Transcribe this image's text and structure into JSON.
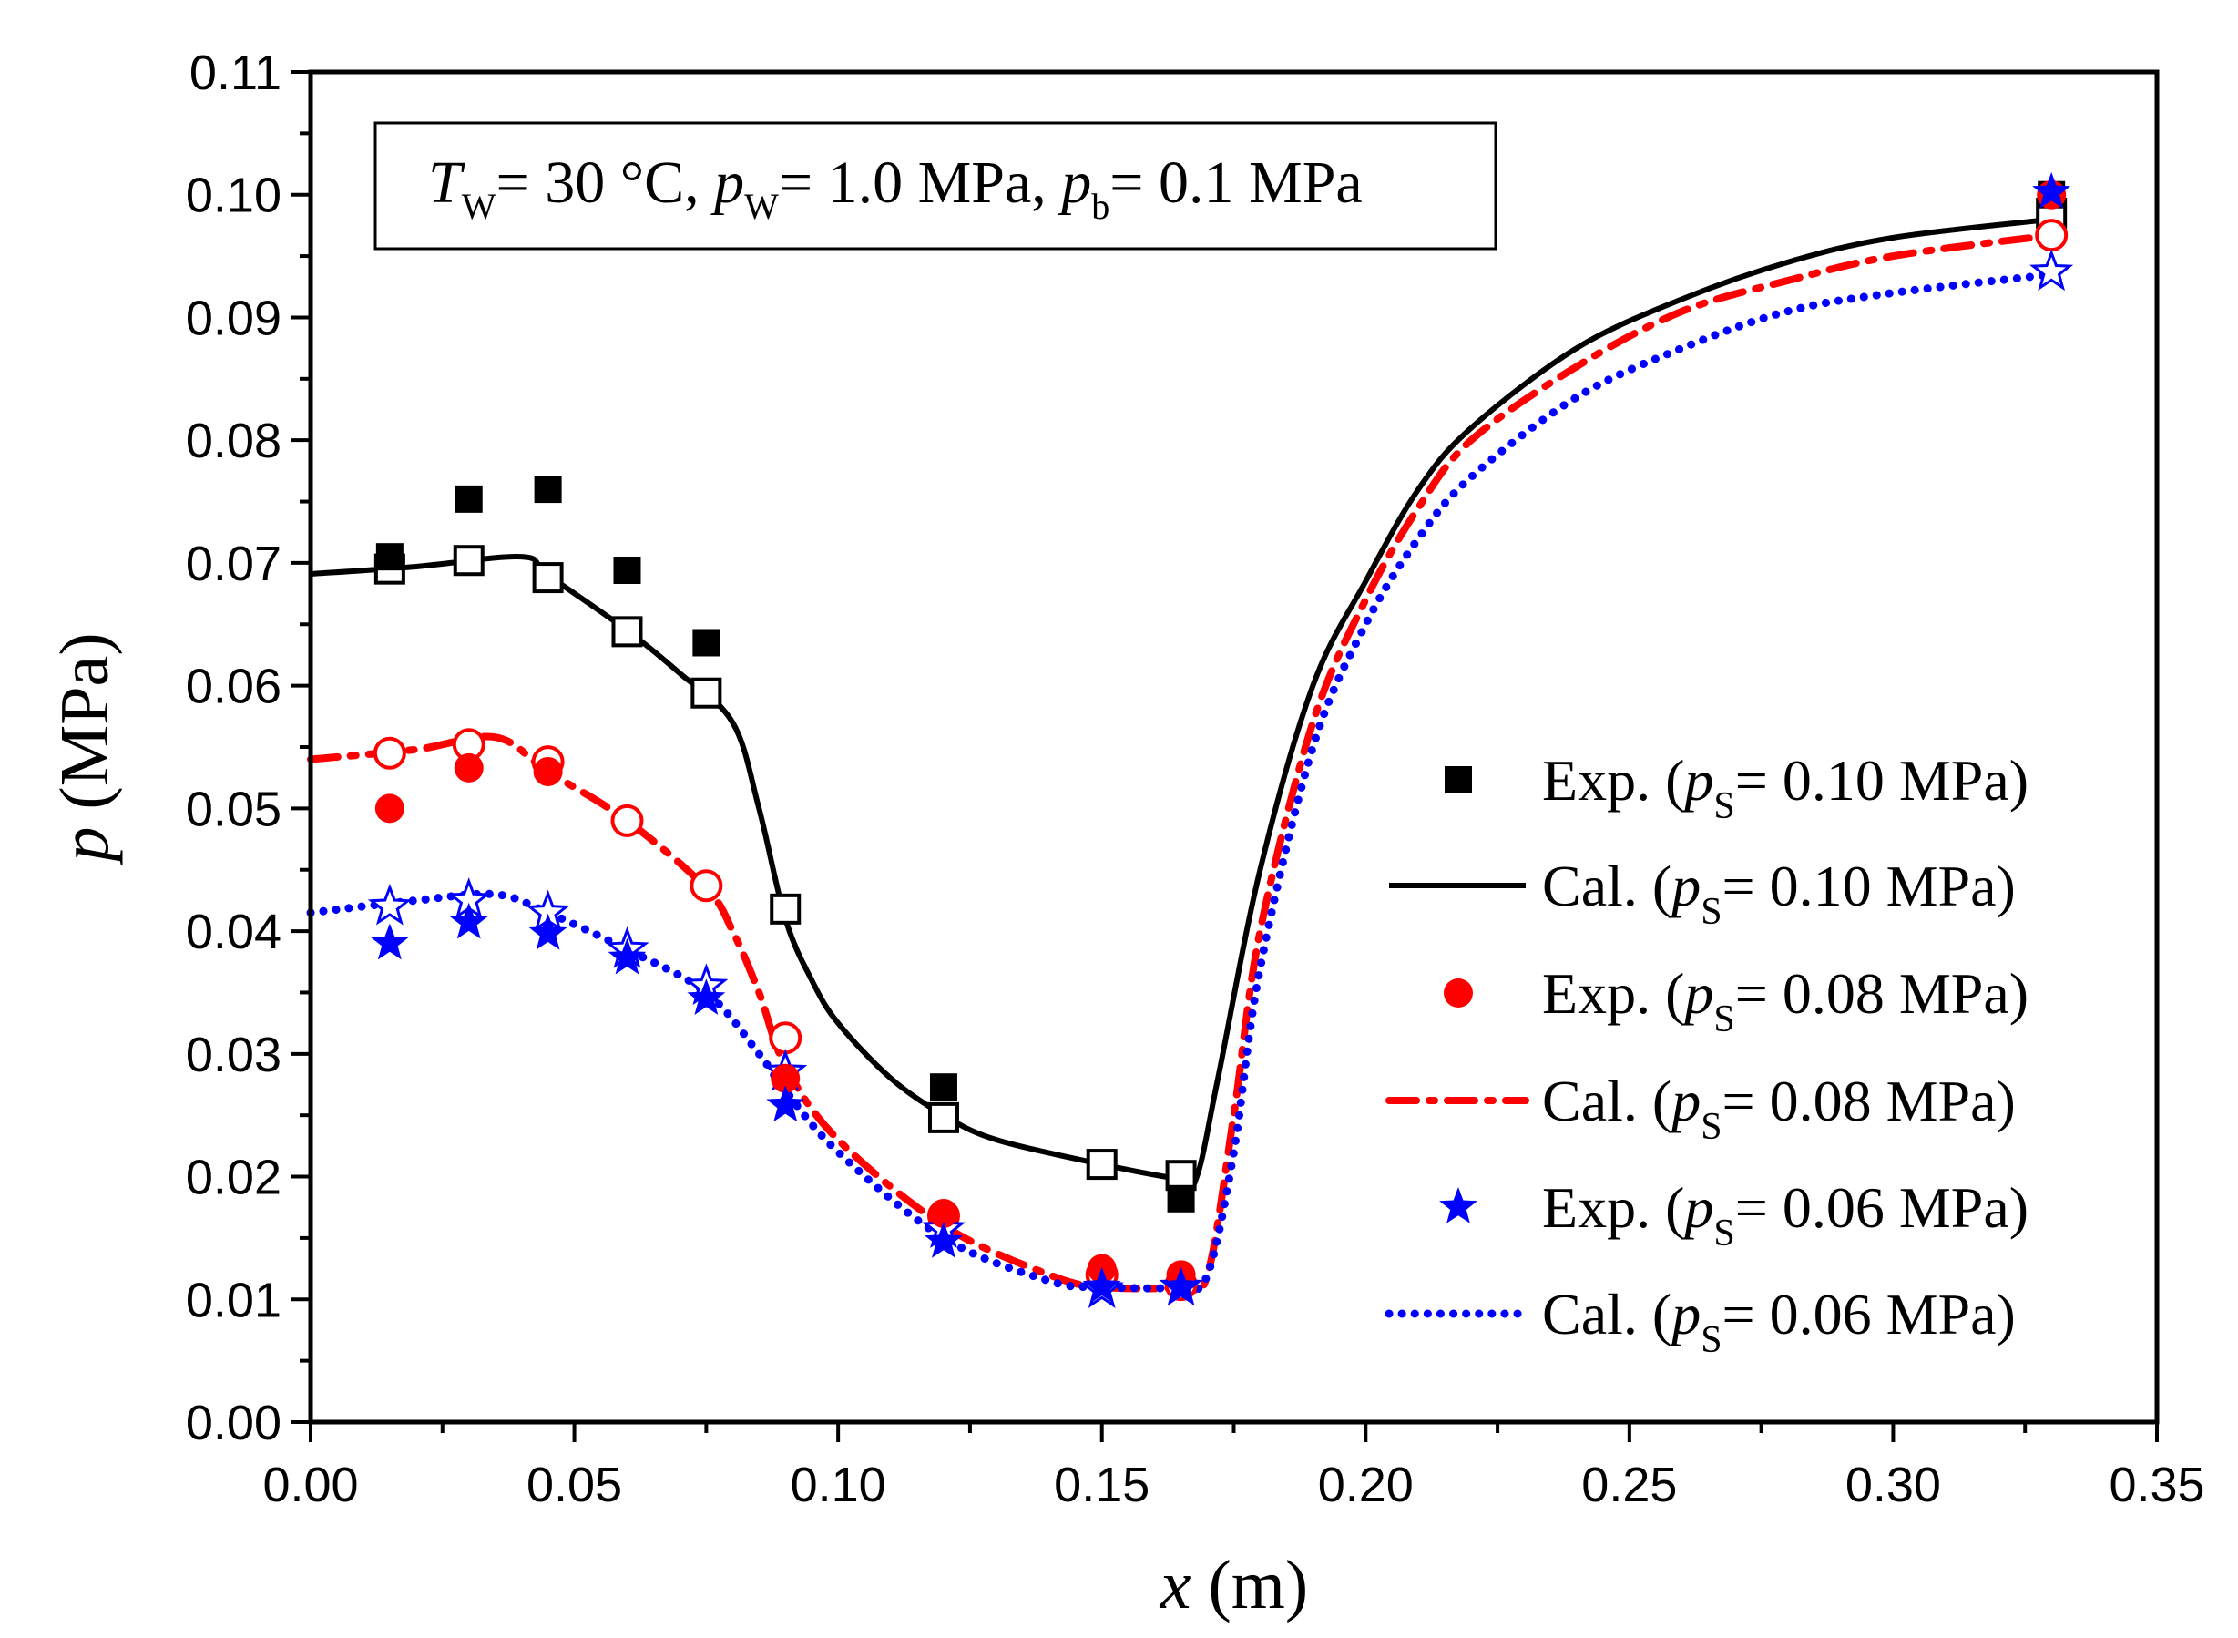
{
  "chart_data": {
    "type": "line",
    "title": "",
    "annotation": {
      "T": "T",
      "T_sub": "W",
      "t1": "= 30 °C, ",
      "p1": "p",
      "p1_sub": "W",
      "t2": "= 1.0 MPa, ",
      "p2": "p",
      "p2_sub": "b",
      "t3": "= 0.1 MPa"
    },
    "xlabel": {
      "var": "x",
      "unit": " (m)"
    },
    "ylabel": {
      "var": "p",
      "unit": " (MPa)"
    },
    "xlim": [
      0,
      0.35
    ],
    "ylim": [
      0,
      0.11
    ],
    "xticks": [
      "0.00",
      "0.05",
      "0.10",
      "0.15",
      "0.20",
      "0.25",
      "0.30",
      "0.35"
    ],
    "yticks": [
      "0.00",
      "0.01",
      "0.02",
      "0.03",
      "0.04",
      "0.05",
      "0.06",
      "0.07",
      "0.08",
      "0.09",
      "0.10",
      "0.11"
    ],
    "legend_position": "right",
    "colors": {
      "s10": "#000000",
      "s08": "#ff0000",
      "s06": "#0000ff"
    },
    "series": [
      {
        "name": "Exp. (pS= 0.10 MPa)",
        "prefix": "Exp. (",
        "var": "p",
        "sub": "S",
        "suffix": "= 0.10 MPa)",
        "kind": "exp",
        "marker": "square",
        "color": "#000000",
        "x": [
          0.015,
          0.03,
          0.045,
          0.06,
          0.075,
          0.12,
          0.165,
          0.33
        ],
        "y": [
          0.0705,
          0.0752,
          0.076,
          0.0694,
          0.0635,
          0.0273,
          0.0182,
          0.1
        ]
      },
      {
        "name": "Cal. (pS= 0.10 MPa)",
        "prefix": "Cal. (",
        "var": "p",
        "sub": "S",
        "suffix": "= 0.10 MPa)",
        "kind": "cal",
        "dash": "solid",
        "color": "#000000",
        "x": [
          0,
          0.02,
          0.04,
          0.045,
          0.06,
          0.07,
          0.08,
          0.085,
          0.09,
          0.095,
          0.1,
          0.11,
          0.12,
          0.13,
          0.15,
          0.165,
          0.168,
          0.172,
          0.18,
          0.19,
          0.2,
          0.21,
          0.22,
          0.24,
          0.26,
          0.28,
          0.3,
          0.33
        ],
        "y": [
          0.0691,
          0.0697,
          0.0705,
          0.069,
          0.0645,
          0.061,
          0.057,
          0.05,
          0.041,
          0.036,
          0.0325,
          0.028,
          0.025,
          0.023,
          0.021,
          0.0198,
          0.02,
          0.028,
          0.045,
          0.06,
          0.0685,
          0.076,
          0.081,
          0.0875,
          0.0915,
          0.0945,
          0.0965,
          0.098
        ],
        "points_x": [
          0.015,
          0.03,
          0.045,
          0.06,
          0.075,
          0.09,
          0.12,
          0.15,
          0.165,
          0.33
        ],
        "points_y": [
          0.0695,
          0.0702,
          0.0688,
          0.0644,
          0.0594,
          0.0418,
          0.0248,
          0.021,
          0.0201,
          0.0985
        ]
      },
      {
        "name": "Exp. (pS= 0.08 MPa)",
        "prefix": "Exp. (",
        "var": "p",
        "sub": "S",
        "suffix": "= 0.08 MPa)",
        "kind": "exp",
        "marker": "circle",
        "color": "#ff0000",
        "x": [
          0.015,
          0.03,
          0.045,
          0.09,
          0.12,
          0.15,
          0.165,
          0.33
        ],
        "y": [
          0.05,
          0.0533,
          0.053,
          0.028,
          0.017,
          0.0125,
          0.012,
          0.1
        ]
      },
      {
        "name": "Cal. (pS= 0.08 MPa)",
        "prefix": "Cal. (",
        "var": "p",
        "sub": "S",
        "suffix": "= 0.08 MPa)",
        "kind": "cal",
        "dash": "dash-dot",
        "color": "#ff0000",
        "x": [
          0,
          0.02,
          0.035,
          0.045,
          0.06,
          0.075,
          0.08,
          0.085,
          0.09,
          0.1,
          0.12,
          0.14,
          0.15,
          0.165,
          0.17,
          0.175,
          0.18,
          0.19,
          0.2,
          0.21,
          0.22,
          0.24,
          0.26,
          0.28,
          0.3,
          0.33
        ],
        "y": [
          0.054,
          0.0548,
          0.0558,
          0.053,
          0.049,
          0.0435,
          0.04,
          0.035,
          0.029,
          0.023,
          0.016,
          0.012,
          0.011,
          0.011,
          0.012,
          0.025,
          0.04,
          0.057,
          0.067,
          0.0745,
          0.08,
          0.086,
          0.0905,
          0.093,
          0.095,
          0.0967
        ],
        "points_x": [
          0.015,
          0.03,
          0.045,
          0.06,
          0.075,
          0.09,
          0.12,
          0.15,
          0.165,
          0.33
        ],
        "points_y": [
          0.0545,
          0.0552,
          0.0538,
          0.049,
          0.0437,
          0.0313,
          0.0168,
          0.012,
          0.0112,
          0.0967
        ]
      },
      {
        "name": "Exp. (pS= 0.06 MPa)",
        "prefix": "Exp. (",
        "var": "p",
        "sub": "S",
        "suffix": "= 0.06 MPa)",
        "kind": "exp",
        "marker": "star",
        "color": "#0000ff",
        "x": [
          0.015,
          0.03,
          0.045,
          0.06,
          0.075,
          0.09,
          0.12,
          0.15,
          0.165,
          0.33
        ],
        "y": [
          0.039,
          0.0407,
          0.0398,
          0.0378,
          0.0345,
          0.0258,
          0.0147,
          0.011,
          0.011,
          0.1002
        ]
      },
      {
        "name": "Cal. (pS= 0.06 MPa)",
        "prefix": "Cal. (",
        "var": "p",
        "sub": "S",
        "suffix": "= 0.06 MPa)",
        "kind": "cal",
        "dash": "dot",
        "color": "#0000ff",
        "x": [
          0,
          0.02,
          0.035,
          0.045,
          0.06,
          0.075,
          0.085,
          0.09,
          0.1,
          0.12,
          0.14,
          0.15,
          0.165,
          0.17,
          0.175,
          0.18,
          0.19,
          0.2,
          0.21,
          0.22,
          0.24,
          0.26,
          0.28,
          0.3,
          0.33
        ],
        "y": [
          0.0415,
          0.0425,
          0.043,
          0.0415,
          0.0385,
          0.035,
          0.03,
          0.027,
          0.022,
          0.015,
          0.0115,
          0.011,
          0.011,
          0.012,
          0.022,
          0.037,
          0.055,
          0.065,
          0.072,
          0.077,
          0.0835,
          0.0875,
          0.0905,
          0.092,
          0.0935
        ],
        "points_x": [
          0.015,
          0.03,
          0.045,
          0.06,
          0.075,
          0.09,
          0.12,
          0.15,
          0.165,
          0.33
        ],
        "points_y": [
          0.042,
          0.0425,
          0.0415,
          0.0385,
          0.0355,
          0.0285,
          0.0157,
          0.0108,
          0.011,
          0.0937
        ]
      }
    ]
  }
}
